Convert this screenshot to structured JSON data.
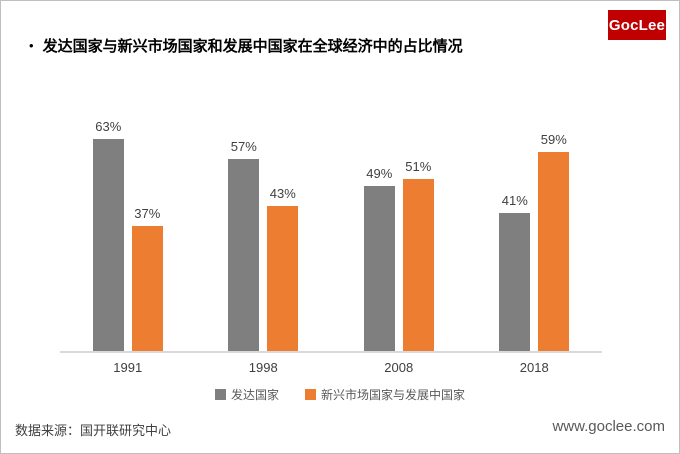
{
  "logo": {
    "text": "GocLee",
    "bg_color": "#c00000",
    "text_color": "#ffffff"
  },
  "title": {
    "bullet": "•",
    "text": "发达国家与新兴市场国家和发展中国家在全球经济中的占比情况"
  },
  "chart_data": {
    "type": "bar",
    "title": "发达国家与新兴市场国家和发展中国家在全球经济中的占比情况",
    "categories": [
      "1991",
      "1998",
      "2008",
      "2018"
    ],
    "series": [
      {
        "name": "发达国家",
        "color": "#7f7f7f",
        "values": [
          63,
          57,
          49,
          41
        ]
      },
      {
        "name": "新兴市场国家与发展中国家",
        "color": "#ed7d31",
        "values": [
          37,
          43,
          51,
          59
        ]
      }
    ],
    "value_suffix": "%",
    "xlabel": "",
    "ylabel": "",
    "ylim": [
      0,
      70
    ],
    "grid": false,
    "legend_position": "bottom",
    "axis_line_color": "#d9d9d9",
    "label_color": "#404040",
    "legend_text_color": "#595959"
  },
  "footer": {
    "source": "数据来源：国开联研究中心",
    "website": "www.goclee.com"
  }
}
